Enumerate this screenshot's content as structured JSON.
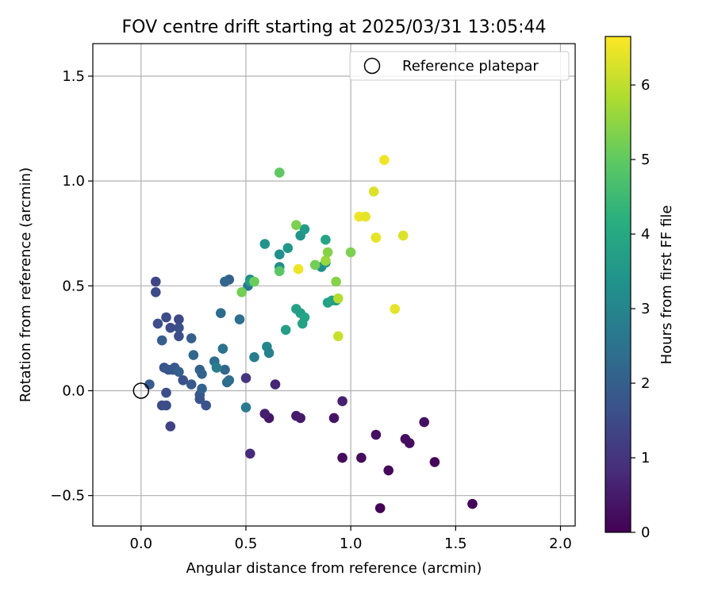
{
  "chart_data": {
    "type": "scatter",
    "title": "FOV centre drift starting at 2025/03/31 13:05:44",
    "xlabel": "Angular distance from reference (arcmin)",
    "ylabel": "Rotation from reference (arcmin)",
    "xlim": [
      -0.23,
      2.07
    ],
    "ylim": [
      -0.645,
      1.655
    ],
    "xticks": [
      0.0,
      0.5,
      1.0,
      1.5,
      2.0
    ],
    "xtick_labels": [
      "0.0",
      "0.5",
      "1.0",
      "1.5",
      "2.0"
    ],
    "yticks": [
      -0.5,
      0.0,
      0.5,
      1.0,
      1.5
    ],
    "ytick_labels": [
      "−0.5",
      "0.0",
      "0.5",
      "1.0",
      "1.5"
    ],
    "grid": true,
    "legend": {
      "placement": "top-right",
      "entries": [
        "Reference platepar"
      ]
    },
    "reference_point": {
      "x": 0.0,
      "y": 0.0,
      "label": "Reference platepar"
    },
    "colorbar": {
      "label": "Hours from first FF file",
      "colormap": "viridis",
      "range": [
        0,
        6.65
      ],
      "ticks": [
        0,
        1,
        2,
        3,
        4,
        5,
        6
      ],
      "tick_labels": [
        "0",
        "1",
        "2",
        "3",
        "4",
        "5",
        "6"
      ]
    },
    "points": [
      [
        1.14,
        -0.56,
        0.05
      ],
      [
        1.58,
        -0.54,
        0.1
      ],
      [
        1.18,
        -0.38,
        0.15
      ],
      [
        1.4,
        -0.34,
        0.12
      ],
      [
        1.05,
        -0.32,
        0.18
      ],
      [
        0.96,
        -0.32,
        0.2
      ],
      [
        1.28,
        -0.25,
        0.22
      ],
      [
        1.26,
        -0.23,
        0.25
      ],
      [
        1.12,
        -0.21,
        0.28
      ],
      [
        1.35,
        -0.15,
        0.3
      ],
      [
        0.92,
        -0.13,
        0.35
      ],
      [
        0.61,
        -0.13,
        0.4
      ],
      [
        0.76,
        -0.13,
        0.45
      ],
      [
        0.74,
        -0.12,
        0.5
      ],
      [
        0.59,
        -0.11,
        0.55
      ],
      [
        0.96,
        -0.05,
        0.6
      ],
      [
        0.52,
        -0.3,
        0.8
      ],
      [
        0.64,
        0.03,
        0.7
      ],
      [
        0.5,
        0.06,
        1.0
      ],
      [
        0.14,
        -0.17,
        1.3
      ],
      [
        0.1,
        -0.07,
        1.5
      ],
      [
        0.12,
        -0.07,
        1.55
      ],
      [
        0.12,
        -0.01,
        1.6
      ],
      [
        0.31,
        -0.07,
        1.7
      ],
      [
        0.28,
        -0.04,
        1.75
      ],
      [
        0.28,
        -0.02,
        1.8
      ],
      [
        0.24,
        0.03,
        1.85
      ],
      [
        0.04,
        0.03,
        1.9
      ],
      [
        0.2,
        0.05,
        1.65
      ],
      [
        0.15,
        0.1,
        1.7
      ],
      [
        0.11,
        0.11,
        1.75
      ],
      [
        0.13,
        0.1,
        1.8
      ],
      [
        0.16,
        0.11,
        1.85
      ],
      [
        0.18,
        0.09,
        2.0
      ],
      [
        0.1,
        0.24,
        1.95
      ],
      [
        0.18,
        0.26,
        1.6
      ],
      [
        0.18,
        0.3,
        1.65
      ],
      [
        0.14,
        0.3,
        1.55
      ],
      [
        0.12,
        0.35,
        1.5
      ],
      [
        0.18,
        0.34,
        1.45
      ],
      [
        0.08,
        0.32,
        1.6
      ],
      [
        0.07,
        0.47,
        1.5
      ],
      [
        0.07,
        0.52,
        1.4
      ],
      [
        0.28,
        0.1,
        2.05
      ],
      [
        0.29,
        0.08,
        2.1
      ],
      [
        0.25,
        0.17,
        2.2
      ],
      [
        0.24,
        0.25,
        2.0
      ],
      [
        0.29,
        0.01,
        2.1
      ],
      [
        0.4,
        0.1,
        2.2
      ],
      [
        0.41,
        0.04,
        2.3
      ],
      [
        0.42,
        0.05,
        2.4
      ],
      [
        0.35,
        0.14,
        2.4
      ],
      [
        0.36,
        0.11,
        2.8
      ],
      [
        0.39,
        0.2,
        2.5
      ],
      [
        0.38,
        0.37,
        2.3
      ],
      [
        0.47,
        0.34,
        2.4
      ],
      [
        0.4,
        0.52,
        2.1
      ],
      [
        0.42,
        0.53,
        2.0
      ],
      [
        0.4,
        0.52,
        2.2
      ],
      [
        0.51,
        0.5,
        2.6
      ],
      [
        0.5,
        -0.08,
        2.7
      ],
      [
        0.54,
        0.16,
        2.8
      ],
      [
        0.6,
        0.21,
        3.0
      ],
      [
        0.61,
        0.18,
        2.9
      ],
      [
        0.52,
        0.53,
        3.0
      ],
      [
        0.52,
        0.52,
        3.6
      ],
      [
        0.59,
        0.7,
        3.4
      ],
      [
        0.66,
        0.65,
        3.3
      ],
      [
        0.66,
        0.59,
        3.2
      ],
      [
        0.7,
        0.68,
        3.5
      ],
      [
        0.76,
        0.74,
        3.4
      ],
      [
        0.78,
        0.77,
        3.6
      ],
      [
        0.69,
        0.29,
        3.7
      ],
      [
        0.74,
        0.39,
        3.8
      ],
      [
        0.76,
        0.37,
        3.7
      ],
      [
        0.78,
        0.35,
        3.9
      ],
      [
        0.77,
        0.32,
        3.8
      ],
      [
        0.86,
        0.59,
        3.3
      ],
      [
        0.88,
        0.72,
        3.9
      ],
      [
        0.88,
        0.61,
        3.5
      ],
      [
        0.89,
        0.42,
        3.8
      ],
      [
        0.91,
        0.43,
        3.9
      ],
      [
        0.93,
        0.43,
        3.7
      ],
      [
        0.48,
        0.47,
        5.2
      ],
      [
        0.54,
        0.52,
        5.1
      ],
      [
        0.66,
        0.57,
        4.9
      ],
      [
        0.66,
        1.04,
        5.0
      ],
      [
        0.74,
        0.79,
        5.3
      ],
      [
        0.83,
        0.6,
        5.2
      ],
      [
        0.89,
        0.66,
        5.4
      ],
      [
        1.0,
        0.66,
        5.3
      ],
      [
        0.93,
        0.52,
        5.4
      ],
      [
        0.88,
        0.62,
        5.6
      ],
      [
        0.94,
        0.44,
        5.9
      ],
      [
        0.94,
        0.26,
        6.1
      ],
      [
        0.75,
        0.58,
        6.5
      ],
      [
        1.04,
        0.83,
        6.5
      ],
      [
        1.07,
        0.83,
        6.4
      ],
      [
        1.11,
        0.95,
        6.3
      ],
      [
        1.12,
        0.73,
        6.5
      ],
      [
        1.12,
        0.73,
        6.4
      ],
      [
        1.16,
        1.1,
        6.5
      ],
      [
        1.21,
        0.39,
        6.4
      ],
      [
        1.25,
        0.74,
        6.3
      ]
    ]
  }
}
